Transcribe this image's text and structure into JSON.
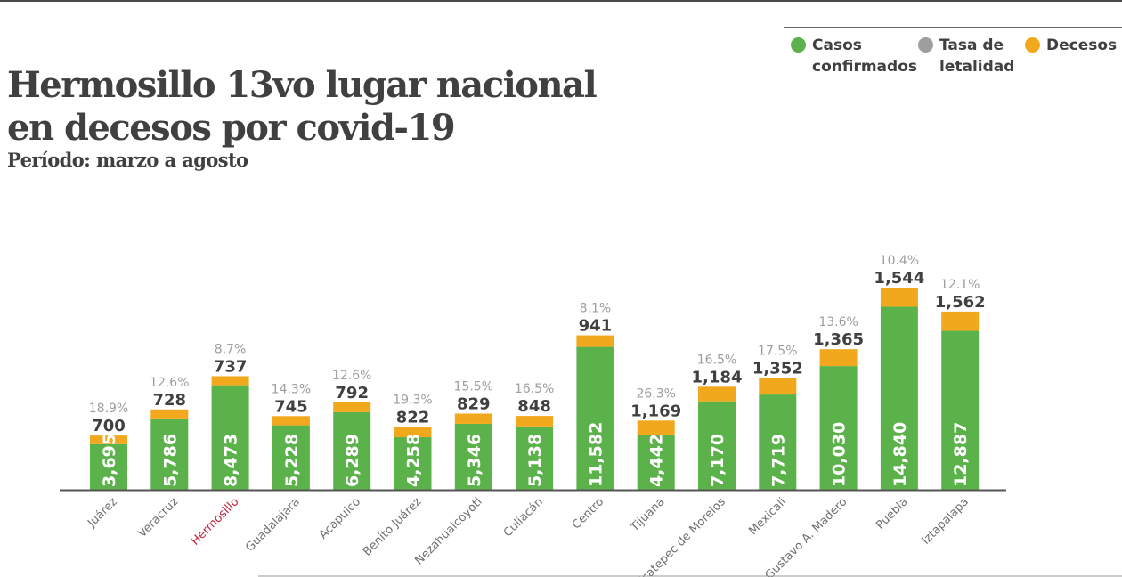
{
  "title": "Hermosillo 13vo lugar nacional en decesos por  covid-19",
  "subtitle": "Período: marzo  a agosto",
  "legend": [
    {
      "line1": "Casos",
      "line2": "confirmados",
      "color": "#5cb24a"
    },
    {
      "line1": "Tasa de",
      "line2": "letalidad",
      "color": "#9e9e9e"
    },
    {
      "line1": "Decesos",
      "line2": "",
      "color": "#f2a81d"
    }
  ],
  "colors": {
    "confirmed": "#5cb24a",
    "deaths": "#f2a81d",
    "rate_text": "#9e9e9e",
    "deaths_text": "#404040",
    "label_text": "#707070",
    "highlight": "#c0223f",
    "axis": "#555555"
  },
  "chart_data": {
    "type": "bar",
    "stacked": true,
    "categories": [
      "Juárez",
      "Veracruz",
      "Hermosillo",
      "Guadalajara",
      "Acapulco",
      "Benito Juárez",
      "Nezahualcóyotl",
      "Culiacán",
      "Centro",
      "Tijuana",
      "Ecatepec de Morelos",
      "Mexicali",
      "Gustavo A. Madero",
      "Puebla",
      "Iztapalapa"
    ],
    "highlight": "Hermosillo",
    "series": [
      {
        "name": "Casos confirmados",
        "labels": [
          "3,695",
          "5,786",
          "8,473",
          "5,228",
          "6,289",
          "4,258",
          "5,346",
          "5,138",
          "11,582",
          "4,442",
          "7,170",
          "7,719",
          "10,030",
          "14,840",
          "12,887"
        ]
      },
      {
        "name": "Decesos",
        "labels": [
          "700",
          "728",
          "737",
          "745",
          "792",
          "822",
          "829",
          "848",
          "941",
          "1,169",
          "1,184",
          "1,352",
          "1,365",
          "1,544",
          "1,562"
        ]
      },
      {
        "name": "Tasa de letalidad",
        "labels": [
          "18.9%",
          "12.6%",
          "8.7%",
          "14.3%",
          "12.6%",
          "19.3%",
          "15.5%",
          "16.5%",
          "8.1%",
          "26.3%",
          "16.5%",
          "17.5%",
          "13.6%",
          "10.4%",
          "12.1%"
        ]
      }
    ]
  }
}
